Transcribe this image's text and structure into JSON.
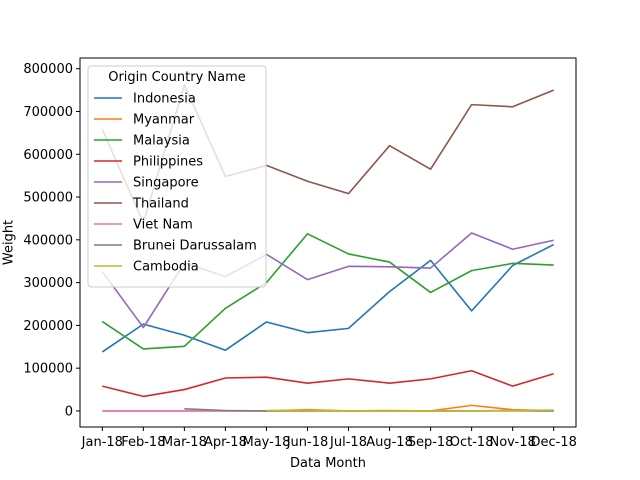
{
  "chart_data": {
    "type": "line",
    "xlabel": "Data Month",
    "ylabel": "Weight",
    "ylim": [
      -37500,
      825000
    ],
    "yticks": [
      0,
      100000,
      200000,
      300000,
      400000,
      500000,
      600000,
      700000,
      800000
    ],
    "categories": [
      "Jan-18",
      "Feb-18",
      "Mar-18",
      "Apr-18",
      "May-18",
      "Jun-18",
      "Jul-18",
      "Aug-18",
      "Sep-18",
      "Oct-18",
      "Nov-18",
      "Dec-18"
    ],
    "grid": false,
    "legend": {
      "title": "Origin Country Name",
      "placement": "upper-left"
    },
    "series": [
      {
        "name": "Indonesia",
        "color": "#1f77b4",
        "values": [
          138000,
          203000,
          177000,
          142000,
          208000,
          183000,
          193000,
          279000,
          352000,
          234000,
          340000,
          389000
        ]
      },
      {
        "name": "Myanmar",
        "color": "#ff7f0e",
        "values": [
          0,
          0,
          0,
          0,
          0,
          3000,
          0,
          1000,
          0,
          13000,
          3000,
          1000
        ]
      },
      {
        "name": "Malaysia",
        "color": "#2ca02c",
        "values": [
          209000,
          145000,
          151000,
          240000,
          300000,
          414000,
          367000,
          348000,
          277000,
          328000,
          345000,
          341000
        ]
      },
      {
        "name": "Philippines",
        "color": "#d62728",
        "values": [
          58000,
          34000,
          50000,
          77000,
          79000,
          65000,
          75000,
          65000,
          75000,
          94000,
          58000,
          87000
        ]
      },
      {
        "name": "Singapore",
        "color": "#9467bd",
        "values": [
          326000,
          195000,
          346000,
          314000,
          366000,
          307000,
          338000,
          337000,
          334000,
          416000,
          378000,
          399000
        ]
      },
      {
        "name": "Thailand",
        "color": "#8c564b",
        "values": [
          658000,
          440000,
          762000,
          548000,
          574000,
          537000,
          508000,
          620000,
          565000,
          716000,
          711000,
          750000
        ]
      },
      {
        "name": "Viet Nam",
        "color": "#e377c2",
        "values": [
          0,
          0,
          0,
          0,
          0,
          0,
          0,
          0,
          0,
          0,
          0,
          0
        ]
      },
      {
        "name": "Brunei Darussalam",
        "color": "#7f7f7f",
        "values": [
          null,
          null,
          5000,
          1000,
          0,
          0,
          0,
          0,
          0,
          0,
          1000,
          0
        ]
      },
      {
        "name": "Cambodia",
        "color": "#bcbd22",
        "values": [
          null,
          null,
          null,
          null,
          1000,
          1000,
          0,
          0,
          0,
          0,
          1000,
          2000
        ]
      }
    ]
  }
}
